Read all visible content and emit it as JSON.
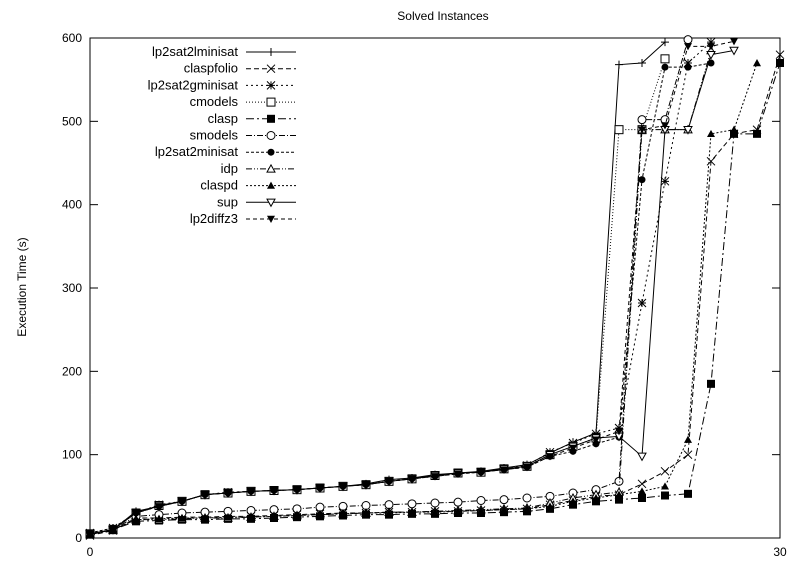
{
  "chart_data": {
    "type": "line",
    "title": "Solved Instances",
    "xlabel": "",
    "ylabel": "Execution Time (s)",
    "xlim": [
      0,
      30
    ],
    "ylim": [
      0,
      600
    ],
    "xticks": [
      0,
      30
    ],
    "yticks": [
      0,
      100,
      200,
      300,
      400,
      500,
      600
    ],
    "grid": false,
    "legend_position": "top-left",
    "series": [
      {
        "name": "lp2sat2lminisat",
        "marker": "plus",
        "dash": "",
        "color": "#000000",
        "x": [
          0,
          1,
          2,
          3,
          4,
          5,
          6,
          7,
          8,
          9,
          10,
          11,
          12,
          13,
          14,
          15,
          16,
          17,
          18,
          19,
          20,
          21,
          22,
          23,
          24,
          25
        ],
        "y": [
          5,
          10,
          32,
          38,
          44,
          52,
          54,
          56,
          57,
          58,
          60,
          62,
          65,
          70,
          72,
          76,
          78,
          80,
          84,
          88,
          102,
          115,
          126,
          568,
          570,
          595
        ]
      },
      {
        "name": "claspfolio",
        "marker": "x",
        "dash": "5,3",
        "color": "#000000",
        "x": [
          0,
          1,
          2,
          3,
          4,
          5,
          6,
          7,
          8,
          9,
          10,
          11,
          12,
          13,
          14,
          15,
          16,
          17,
          18,
          19,
          20,
          21,
          22,
          23,
          24,
          25,
          26,
          27,
          28,
          29,
          30
        ],
        "y": [
          3,
          9,
          24,
          24,
          25,
          25,
          26,
          26,
          27,
          28,
          29,
          30,
          30,
          31,
          31,
          32,
          32,
          33,
          34,
          35,
          40,
          45,
          50,
          52,
          65,
          80,
          100,
          452,
          485,
          490,
          580
        ]
      },
      {
        "name": "lp2sat2gminisat",
        "marker": "star",
        "dash": "2,3",
        "color": "#000000",
        "x": [
          0,
          1,
          2,
          3,
          4,
          5,
          6,
          7,
          8,
          9,
          10,
          11,
          12,
          13,
          14,
          15,
          16,
          17,
          18,
          19,
          20,
          21,
          22,
          23,
          24,
          25,
          26,
          27
        ],
        "y": [
          6,
          12,
          30,
          40,
          44,
          52,
          55,
          56,
          57,
          58,
          60,
          62,
          64,
          68,
          71,
          75,
          78,
          79,
          83,
          87,
          103,
          114,
          125,
          132,
          282,
          428,
          570,
          595
        ]
      },
      {
        "name": "cmodels",
        "marker": "square-open",
        "dash": "1,2",
        "color": "#000000",
        "x": [
          0,
          1,
          2,
          3,
          4,
          5,
          6,
          7,
          8,
          9,
          10,
          11,
          12,
          13,
          14,
          15,
          16,
          17,
          18,
          19,
          20,
          21,
          22,
          23,
          24,
          25
        ],
        "y": [
          5,
          10,
          30,
          39,
          44,
          52,
          54,
          56,
          57,
          58,
          60,
          62,
          64,
          68,
          71,
          75,
          78,
          79,
          83,
          86,
          100,
          110,
          120,
          490,
          490,
          575
        ]
      },
      {
        "name": "clasp",
        "marker": "square",
        "dash": "8,3,2,3",
        "color": "#000000",
        "x": [
          0,
          1,
          2,
          3,
          4,
          5,
          6,
          7,
          8,
          9,
          10,
          11,
          12,
          13,
          14,
          15,
          16,
          17,
          18,
          19,
          20,
          21,
          22,
          23,
          24,
          25,
          26,
          27,
          28,
          29,
          30
        ],
        "y": [
          4,
          10,
          20,
          21,
          22,
          22,
          23,
          23,
          24,
          25,
          26,
          27,
          28,
          28,
          29,
          29,
          30,
          30,
          31,
          32,
          35,
          40,
          44,
          46,
          48,
          51,
          53,
          185,
          485,
          485,
          570
        ]
      },
      {
        "name": "smodels",
        "marker": "circle-open",
        "dash": "6,2,1,2",
        "color": "#000000",
        "x": [
          0,
          1,
          2,
          3,
          4,
          5,
          6,
          7,
          8,
          9,
          10,
          11,
          12,
          13,
          14,
          15,
          16,
          17,
          18,
          19,
          20,
          21,
          22,
          23,
          24,
          25,
          26
        ],
        "y": [
          5,
          10,
          26,
          28,
          30,
          31,
          32,
          33,
          34,
          35,
          37,
          38,
          39,
          40,
          41,
          42,
          43,
          45,
          46,
          48,
          50,
          54,
          58,
          68,
          502,
          502,
          598
        ]
      },
      {
        "name": "lp2sat2minisat",
        "marker": "circle",
        "dash": "3,2",
        "color": "#000000",
        "x": [
          0,
          1,
          2,
          3,
          4,
          5,
          6,
          7,
          8,
          9,
          10,
          11,
          12,
          13,
          14,
          15,
          16,
          17,
          18,
          19,
          20,
          21,
          22,
          23,
          24,
          25,
          26,
          27
        ],
        "y": [
          6,
          12,
          30,
          38,
          44,
          52,
          54,
          56,
          57,
          58,
          60,
          62,
          64,
          68,
          71,
          74,
          77,
          79,
          82,
          85,
          98,
          104,
          113,
          121,
          430,
          565,
          565,
          570
        ]
      },
      {
        "name": "idp",
        "marker": "triangle-open",
        "dash": "6,2,1,2,1,2",
        "color": "#000000",
        "x": [
          0,
          1,
          2,
          3,
          4,
          5,
          6,
          7,
          8,
          9,
          10,
          11,
          12,
          13,
          14,
          15,
          16,
          17,
          18,
          19,
          20,
          21,
          22,
          23,
          24,
          25,
          26,
          27
        ],
        "y": [
          4,
          10,
          22,
          22,
          23,
          24,
          24,
          25,
          26,
          27,
          28,
          29,
          30,
          31,
          31,
          32,
          33,
          34,
          35,
          36,
          42,
          48,
          52,
          55,
          490,
          490,
          490,
          585
        ]
      },
      {
        "name": "claspd",
        "marker": "triangle",
        "dash": "2,2",
        "color": "#000000",
        "x": [
          0,
          1,
          2,
          3,
          4,
          5,
          6,
          7,
          8,
          9,
          10,
          11,
          12,
          13,
          14,
          15,
          16,
          17,
          18,
          19,
          20,
          21,
          22,
          23,
          24,
          25,
          26,
          27,
          28,
          29
        ],
        "y": [
          4,
          10,
          22,
          23,
          24,
          24,
          25,
          25,
          26,
          27,
          28,
          29,
          30,
          30,
          31,
          31,
          32,
          33,
          34,
          35,
          38,
          44,
          48,
          52,
          56,
          62,
          118,
          485,
          490,
          570
        ]
      },
      {
        "name": "sup",
        "marker": "triangle-down-open",
        "dash": "",
        "color": "#000000",
        "x": [
          0,
          1,
          2,
          3,
          4,
          5,
          6,
          7,
          8,
          9,
          10,
          11,
          12,
          13,
          14,
          15,
          16,
          17,
          18,
          19,
          20,
          21,
          22,
          23,
          24,
          25,
          26,
          27,
          28
        ],
        "y": [
          5,
          10,
          30,
          39,
          44,
          52,
          54,
          56,
          57,
          58,
          60,
          62,
          64,
          68,
          71,
          75,
          78,
          79,
          83,
          86,
          100,
          110,
          120,
          122,
          98,
          490,
          490,
          580,
          585
        ]
      },
      {
        "name": "lp2diffz3",
        "marker": "triangle-down",
        "dash": "4,3",
        "color": "#000000",
        "x": [
          0,
          1,
          2,
          3,
          4,
          5,
          6,
          7,
          8,
          9,
          10,
          11,
          12,
          13,
          14,
          15,
          16,
          17,
          18,
          19,
          20,
          21,
          22,
          23,
          24,
          25,
          26,
          27,
          28
        ],
        "y": [
          5,
          10,
          30,
          38,
          44,
          52,
          54,
          56,
          57,
          58,
          60,
          62,
          64,
          68,
          71,
          74,
          77,
          79,
          82,
          85,
          98,
          108,
          118,
          128,
          490,
          495,
          590,
          590,
          596
        ]
      }
    ]
  }
}
